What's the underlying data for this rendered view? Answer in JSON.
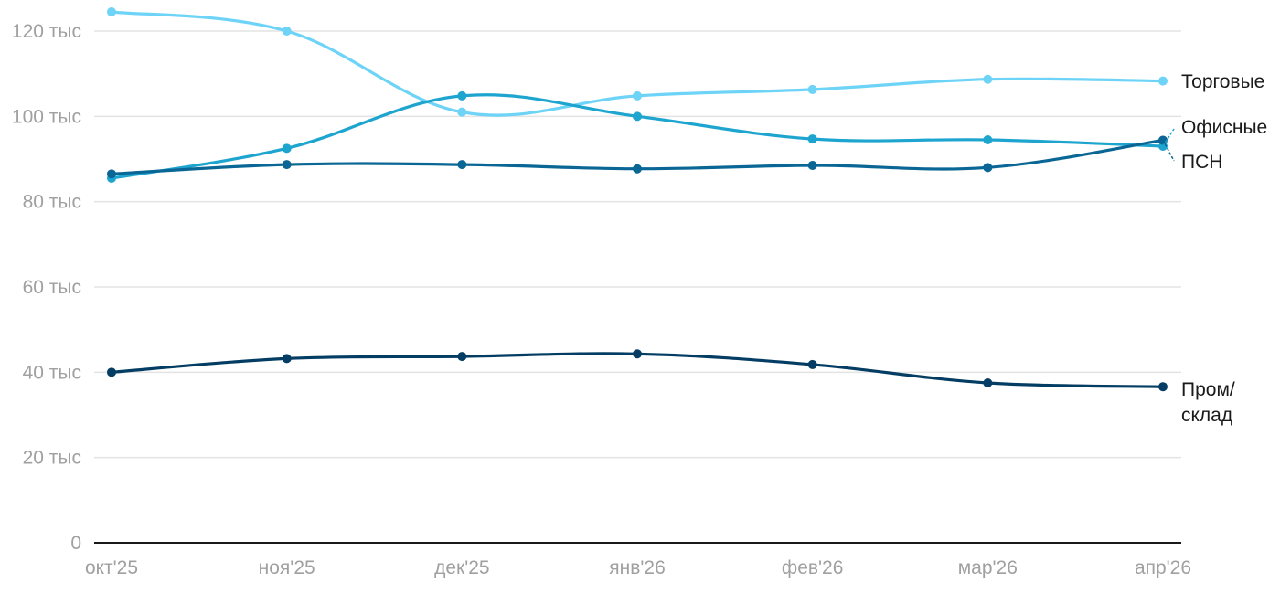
{
  "chart_data": {
    "type": "line",
    "categories": [
      "окт'25",
      "ноя'25",
      "дек'25",
      "янв'26",
      "фев'26",
      "мар'26",
      "апр'26"
    ],
    "y_ticks": [
      "0",
      "20 тыс",
      "40 тыс",
      "60 тыс",
      "80 тыс",
      "100 тыс",
      "120 тыс"
    ],
    "ylim": [
      0,
      125000
    ],
    "grid": true,
    "series": [
      {
        "name": "Торговые",
        "color": "#6dd3f7",
        "values": [
          124500,
          120000,
          101000,
          104800,
          106300,
          108700,
          108300
        ]
      },
      {
        "name": "Офисные",
        "color": "#1ea5cf",
        "values": [
          85500,
          92500,
          104800,
          100000,
          94700,
          94500,
          93000
        ]
      },
      {
        "name": "ПСН",
        "color": "#0a6795",
        "values": [
          86500,
          88700,
          88700,
          87700,
          88500,
          88000,
          94400
        ]
      },
      {
        "name": "Пром/склад",
        "color": "#043d63",
        "values": [
          40000,
          43200,
          43700,
          44300,
          41800,
          37500,
          36600
        ]
      }
    ],
    "end_labels": {
      "Торговые": [
        "Торговые"
      ],
      "Офисные": [
        "Офисные"
      ],
      "ПСН": [
        "ПСН"
      ],
      "Пром/склад": [
        "Пром/",
        "склад"
      ]
    }
  }
}
